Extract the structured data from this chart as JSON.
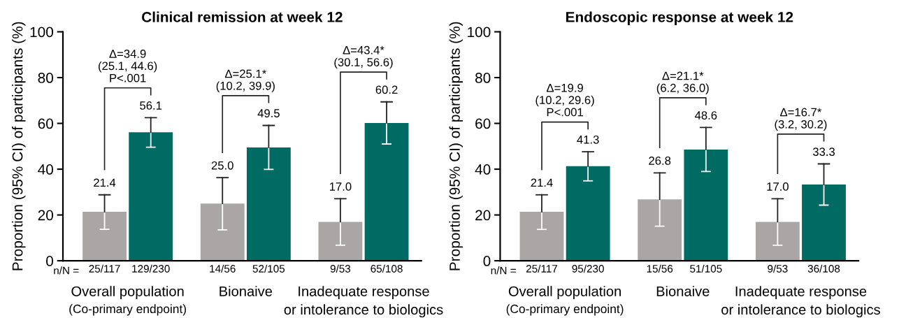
{
  "chart_data": [
    {
      "type": "bar",
      "title": "Clinical remission at week 12",
      "ylabel": "Proportion (95% CI) of participants (%)",
      "categories": [
        "25/117",
        "129/230",
        "14/56",
        "52/105",
        "9/53",
        "65/108"
      ],
      "values": [
        21.4,
        56.1,
        25.0,
        49.5,
        17.0,
        60.2
      ],
      "colors": [
        "#aaa6a5",
        "#006b63",
        "#aaa6a5",
        "#006b63",
        "#aaa6a5",
        "#006b63"
      ],
      "errors": [
        [
          13.7,
          28.8
        ],
        [
          49.6,
          62.5
        ],
        [
          13.5,
          36.3
        ],
        [
          39.9,
          59.1
        ],
        [
          6.8,
          27.1
        ],
        [
          51.0,
          69.4
        ]
      ],
      "value_labels": [
        "21.4",
        "56.1",
        "25.0",
        "49.5",
        "17.0",
        "60.2"
      ],
      "ylim": [
        0,
        100
      ],
      "yticks": [
        0,
        20,
        40,
        60,
        80,
        100
      ],
      "grid": false,
      "legend": false,
      "annotations": [
        "n/N =",
        "Overall population\n(Co-primary endpoint)",
        "Bionaive",
        "Inadequate response\nor intolerance to biologics",
        "Δ=34.9\n(25.1, 44.6)\nP<.001",
        "Δ=25.1*\n(10.2, 39.9)",
        "Δ=43.4*\n(30.1, 56.6)"
      ]
    },
    {
      "type": "bar",
      "title": "Endoscopic response at week 12",
      "ylabel": "Proportion (95% CI) of participants (%)",
      "categories": [
        "25/117",
        "95/230",
        "15/56",
        "51/105",
        "9/53",
        "36/108"
      ],
      "values": [
        21.4,
        41.3,
        26.8,
        48.6,
        17.0,
        33.3
      ],
      "colors": [
        "#aaa6a5",
        "#006b63",
        "#aaa6a5",
        "#006b63",
        "#aaa6a5",
        "#006b63"
      ],
      "errors": [
        [
          13.7,
          28.8
        ],
        [
          34.9,
          47.6
        ],
        [
          15.1,
          38.4
        ],
        [
          39.0,
          58.2
        ],
        [
          6.8,
          27.1
        ],
        [
          24.3,
          42.3
        ]
      ],
      "value_labels": [
        "21.4",
        "41.3",
        "26.8",
        "48.6",
        "17.0",
        "33.3"
      ],
      "ylim": [
        0,
        100
      ],
      "yticks": [
        0,
        20,
        40,
        60,
        80,
        100
      ],
      "grid": false,
      "legend": false,
      "annotations": [
        "n/N =",
        "Overall population\n(Co-primary endpoint)",
        "Bionaive",
        "Inadequate response\nor intolerance to biologics",
        "Δ=19.9\n(10.2, 29.6)\nP<.001",
        "Δ=21.1*\n(6.2, 36.0)",
        "Δ=16.7*\n(3.2, 30.2)"
      ]
    }
  ]
}
